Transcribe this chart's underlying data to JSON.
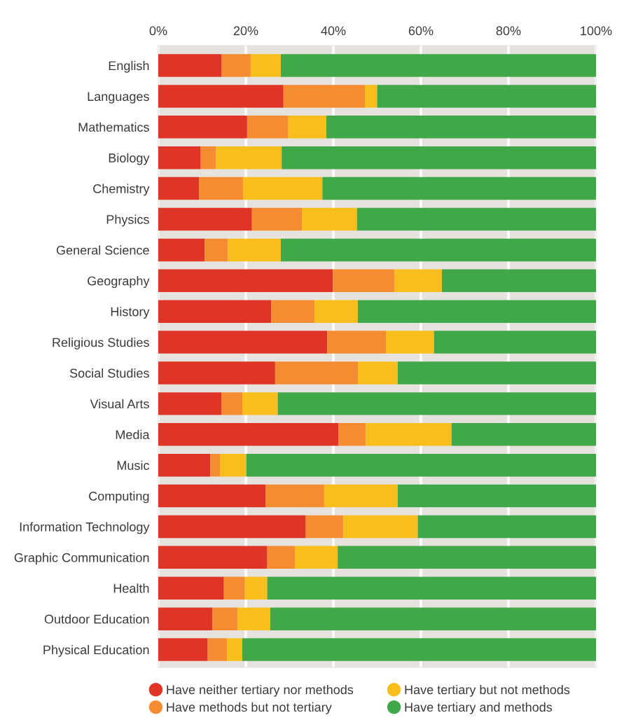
{
  "chart_data": {
    "type": "bar",
    "orientation": "horizontal",
    "stacked": true,
    "categories": [
      "English",
      "Languages",
      "Mathematics",
      "Biology",
      "Chemistry",
      "Physics",
      "General Science",
      "Geography",
      "History",
      "Religious Studies",
      "Social Studies",
      "Visual Arts",
      "Media",
      "Music",
      "Computing",
      "Information Technology",
      "Graphic Communication",
      "Health",
      "Outdoor Education",
      "Physical Education"
    ],
    "series": [
      {
        "name": "Have neither tertiary nor methods",
        "color": "#e03426",
        "values": [
          14.5,
          28.6,
          20.3,
          9.7,
          9.3,
          21.4,
          10.6,
          39.9,
          25.8,
          38.6,
          26.7,
          14.4,
          41.2,
          11.9,
          24.5,
          33.7,
          24.9,
          15.0,
          12.4,
          11.3
        ]
      },
      {
        "name": "Have methods but not tertiary",
        "color": "#f58c32",
        "values": [
          6.6,
          18.6,
          9.4,
          3.5,
          10.1,
          11.4,
          5.3,
          14.1,
          9.9,
          13.4,
          18.9,
          4.8,
          6.2,
          2.2,
          13.4,
          8.6,
          6.3,
          4.8,
          5.7,
          4.4
        ]
      },
      {
        "name": "Have tertiary but not methods",
        "color": "#f8bf1c",
        "values": [
          6.9,
          2.8,
          8.7,
          15.0,
          18.1,
          12.6,
          12.1,
          10.8,
          9.9,
          11.0,
          9.1,
          8.1,
          19.6,
          6.0,
          16.8,
          17.0,
          9.8,
          5.1,
          7.5,
          3.5
        ]
      },
      {
        "name": "Have tertiary and methods",
        "color": "#41a84a",
        "values": [
          72.0,
          50.0,
          61.6,
          71.8,
          62.5,
          54.6,
          72.0,
          35.2,
          54.4,
          37.0,
          45.3,
          72.7,
          33.0,
          79.9,
          45.3,
          40.7,
          59.0,
          75.1,
          74.4,
          80.8
        ]
      }
    ],
    "xlim": [
      0,
      100
    ],
    "xticks": [
      {
        "value": 0,
        "label": "0%"
      },
      {
        "value": 20,
        "label": "20%"
      },
      {
        "value": 40,
        "label": "40%"
      },
      {
        "value": 60,
        "label": "60%"
      },
      {
        "value": 80,
        "label": "80%"
      },
      {
        "value": 100,
        "label": "100%"
      }
    ],
    "grid": "x",
    "legend": "bottom"
  }
}
